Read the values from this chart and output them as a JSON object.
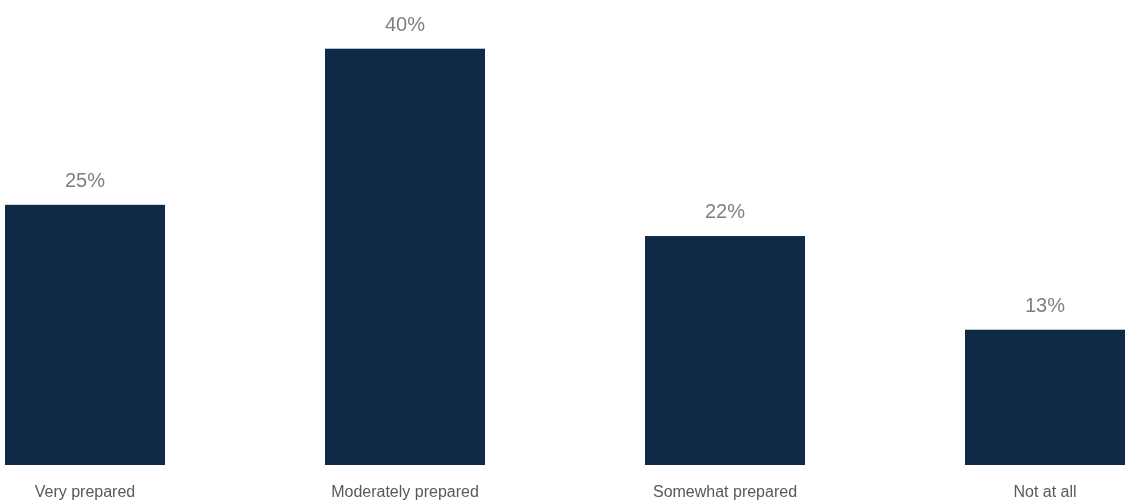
{
  "chart_data": {
    "type": "bar",
    "categories": [
      "Very prepared",
      "Moderately prepared",
      "Somewhat prepared",
      "Not at all"
    ],
    "values": [
      25,
      40,
      22,
      13
    ],
    "value_labels": [
      "25%",
      "40%",
      "22%",
      "13%"
    ],
    "color": "#0e2a47"
  }
}
